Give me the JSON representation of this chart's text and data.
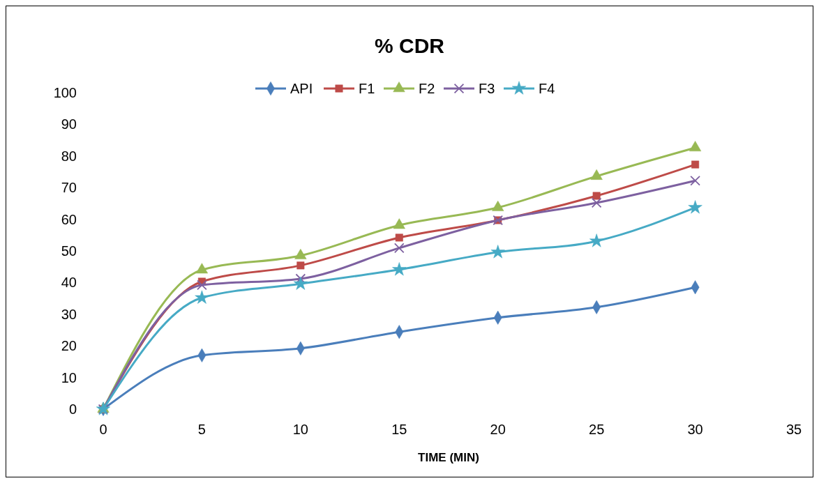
{
  "chart_data": {
    "type": "line",
    "title": "% CDR",
    "xlabel": "TIME (MIN)",
    "x": [
      0,
      5,
      10,
      15,
      20,
      25,
      30
    ],
    "xlim": [
      0,
      35
    ],
    "xticks": [
      0,
      5,
      10,
      15,
      20,
      25,
      30,
      35
    ],
    "ylim": [
      0,
      100
    ],
    "yticks": [
      0,
      10,
      20,
      30,
      40,
      50,
      60,
      70,
      80,
      90,
      100
    ],
    "grid": false,
    "legend": "top",
    "series": [
      {
        "name": "API",
        "color": "#4a7ebb",
        "marker": "diamond",
        "values": [
          0,
          17.0,
          19.2,
          24.4,
          28.9,
          32.2,
          38.5
        ]
      },
      {
        "name": "F1",
        "color": "#be4b48",
        "marker": "square",
        "values": [
          0,
          40.3,
          45.4,
          54.2,
          59.7,
          67.4,
          77.3
        ]
      },
      {
        "name": "F2",
        "color": "#98b954",
        "marker": "triangle",
        "values": [
          0,
          44.0,
          48.5,
          58.1,
          63.7,
          73.6,
          82.6
        ]
      },
      {
        "name": "F3",
        "color": "#7d60a0",
        "marker": "cross",
        "values": [
          0,
          39.2,
          41.2,
          50.9,
          59.7,
          65.2,
          72.2
        ]
      },
      {
        "name": "F4",
        "color": "#46aac5",
        "marker": "star",
        "values": [
          0,
          35.2,
          39.6,
          44.1,
          49.6,
          53.1,
          63.7
        ]
      }
    ]
  }
}
